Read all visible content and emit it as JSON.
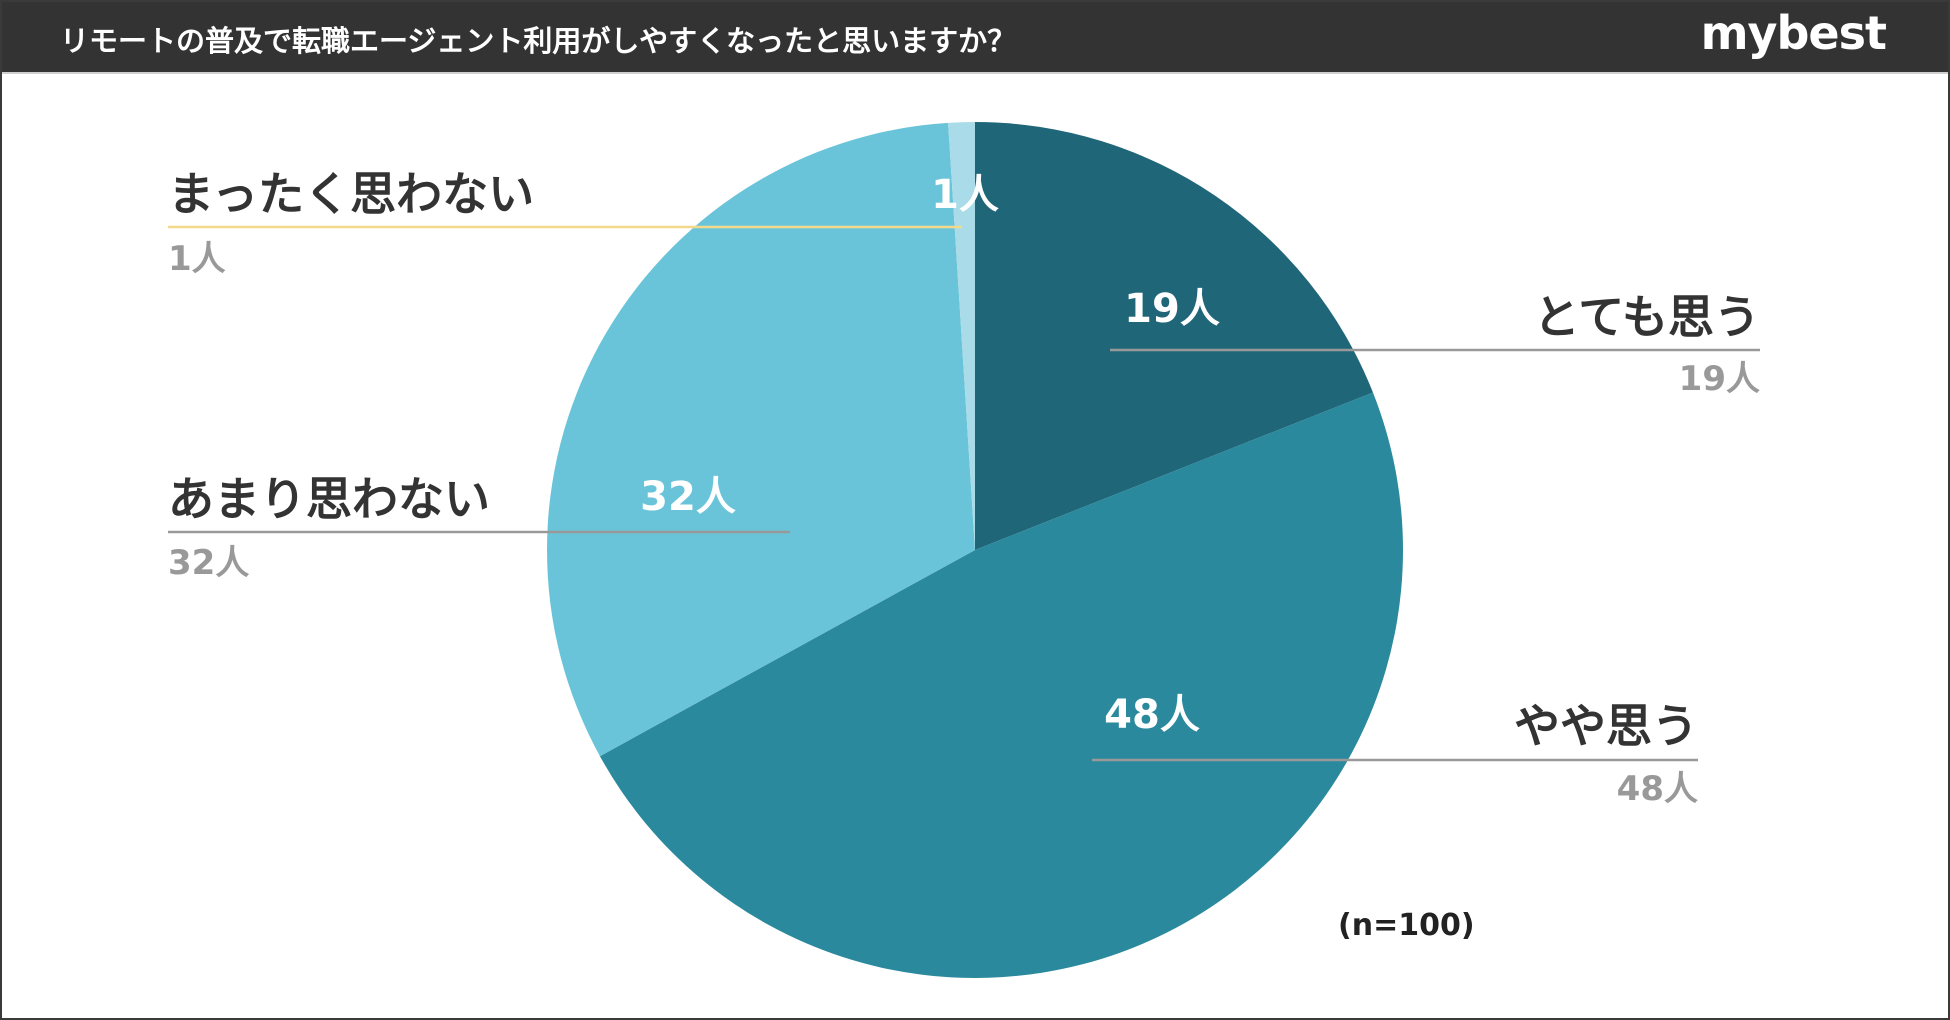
{
  "header": {
    "title": "リモートの普及で転職エージェント利用がしやすくなったと思いますか？",
    "brand": "mybest"
  },
  "note": "(n=100)",
  "chart_data": {
    "type": "pie",
    "title": "リモートの普及で転職エージェント利用がしやすくなったと思いますか？",
    "unit": "人",
    "total": 100,
    "slices": [
      {
        "label": "とても思う",
        "value": 19,
        "value_label": "19人",
        "color": "#1f6679"
      },
      {
        "label": "やや思う",
        "value": 48,
        "value_label": "48人",
        "color": "#2a899c"
      },
      {
        "label": "あまり思わない",
        "value": 32,
        "value_label": "32人",
        "color": "#6ac4d9"
      },
      {
        "label": "まったく思わない",
        "value": 1,
        "value_label": "1人",
        "color": "#a9dce8"
      }
    ],
    "leader_colors": {
      "とても思う": "#999999",
      "やや思う": "#999999",
      "あまり思わない": "#999999",
      "まったく思わない": "#f3d98b"
    }
  }
}
